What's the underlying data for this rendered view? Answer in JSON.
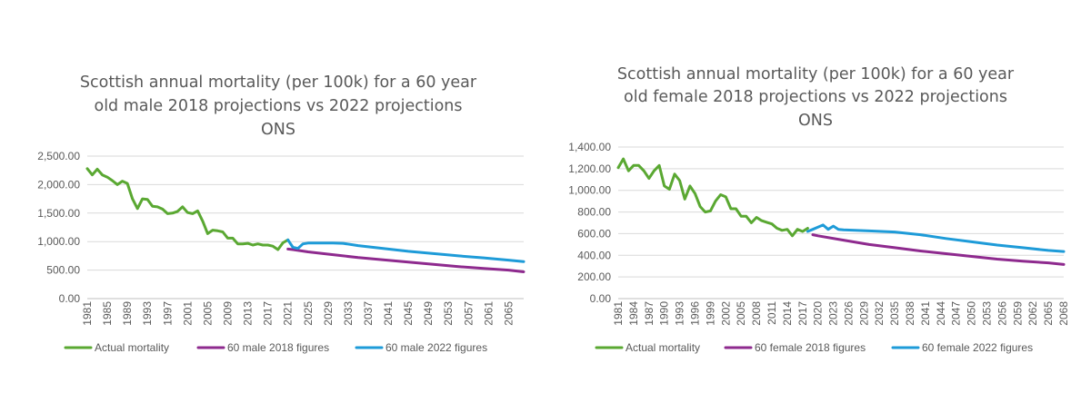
{
  "chart_data": [
    {
      "type": "line",
      "title_lines": [
        "Scottish annual mortality (per 100k) for a 60 year",
        "old male 2018 projections vs 2022 projections",
        "ONS"
      ],
      "ylim": [
        0,
        2500
      ],
      "yticks": [
        0,
        500,
        1000,
        1500,
        2000,
        2500
      ],
      "ytick_labels": [
        "0.00",
        "500.00",
        "1,000.00",
        "1,500.00",
        "2,000.00",
        "2,500.00"
      ],
      "xlim": [
        1981,
        2068
      ],
      "xticks": [
        1981,
        1985,
        1989,
        1993,
        1997,
        2001,
        2005,
        2009,
        2013,
        2017,
        2021,
        2025,
        2029,
        2033,
        2037,
        2041,
        2045,
        2049,
        2053,
        2057,
        2061,
        2065
      ],
      "series": [
        {
          "name": "Actual mortality",
          "color": "#5aa832",
          "x": [
            1981,
            1982,
            1983,
            1984,
            1985,
            1986,
            1987,
            1988,
            1989,
            1990,
            1991,
            1992,
            1993,
            1994,
            1995,
            1996,
            1997,
            1998,
            1999,
            2000,
            2001,
            2002,
            2003,
            2004,
            2005,
            2006,
            2007,
            2008,
            2009,
            2010,
            2011,
            2012,
            2013,
            2014,
            2015,
            2016,
            2017,
            2018,
            2019,
            2020,
            2021
          ],
          "y": [
            2280,
            2170,
            2270,
            2170,
            2130,
            2070,
            2000,
            2060,
            2020,
            1750,
            1580,
            1750,
            1740,
            1620,
            1610,
            1570,
            1490,
            1500,
            1530,
            1610,
            1510,
            1490,
            1540,
            1360,
            1140,
            1200,
            1190,
            1170,
            1060,
            1060,
            960,
            960,
            970,
            940,
            960,
            940,
            940,
            920,
            860,
            980,
            1030
          ]
        },
        {
          "name": "60 male 2018 figures",
          "color": "#8e2a8e",
          "x": [
            2021,
            2022,
            2025,
            2030,
            2035,
            2040,
            2045,
            2050,
            2055,
            2060,
            2065,
            2068
          ],
          "y": [
            870,
            860,
            820,
            770,
            720,
            680,
            640,
            600,
            560,
            530,
            500,
            470
          ]
        },
        {
          "name": "60 male 2022 figures",
          "color": "#1e9bd8",
          "x": [
            2021,
            2022,
            2023,
            2024,
            2025,
            2026,
            2030,
            2032,
            2035,
            2040,
            2045,
            2050,
            2055,
            2060,
            2065,
            2068
          ],
          "y": [
            1030,
            900,
            880,
            960,
            975,
            975,
            975,
            970,
            930,
            880,
            830,
            790,
            750,
            715,
            675,
            650
          ]
        }
      ]
    },
    {
      "type": "line",
      "title_lines": [
        "Scottish annual mortality (per 100k) for a 60 year",
        "old female 2018 projections vs 2022 projections",
        "ONS"
      ],
      "ylim": [
        0,
        1400
      ],
      "yticks": [
        0,
        200,
        400,
        600,
        800,
        1000,
        1200,
        1400
      ],
      "ytick_labels": [
        "0.00",
        "200.00",
        "400.00",
        "600.00",
        "800.00",
        "1,000.00",
        "1,200.00",
        "1,400.00"
      ],
      "xlim": [
        1981,
        2068
      ],
      "xticks": [
        1981,
        1984,
        1987,
        1990,
        1993,
        1996,
        1999,
        2002,
        2005,
        2008,
        2011,
        2014,
        2017,
        2020,
        2023,
        2026,
        2029,
        2032,
        2035,
        2038,
        2041,
        2044,
        2047,
        2050,
        2053,
        2056,
        2059,
        2062,
        2065,
        2068
      ],
      "series": [
        {
          "name": "Actual mortality",
          "color": "#5aa832",
          "x": [
            1981,
            1982,
            1983,
            1984,
            1985,
            1986,
            1987,
            1988,
            1989,
            1990,
            1991,
            1992,
            1993,
            1994,
            1995,
            1996,
            1997,
            1998,
            1999,
            2000,
            2001,
            2002,
            2003,
            2004,
            2005,
            2006,
            2007,
            2008,
            2009,
            2010,
            2011,
            2012,
            2013,
            2014,
            2015,
            2016,
            2017,
            2018
          ],
          "y": [
            1210,
            1290,
            1180,
            1230,
            1230,
            1180,
            1110,
            1180,
            1230,
            1040,
            1010,
            1150,
            1090,
            920,
            1040,
            970,
            850,
            800,
            810,
            900,
            960,
            940,
            830,
            830,
            760,
            760,
            700,
            750,
            720,
            705,
            690,
            650,
            630,
            640,
            580,
            640,
            620,
            650
          ]
        },
        {
          "name": "60 female 2018 figures",
          "color": "#8e2a8e",
          "x": [
            2019,
            2020,
            2025,
            2030,
            2035,
            2040,
            2045,
            2050,
            2055,
            2060,
            2065,
            2068
          ],
          "y": [
            590,
            580,
            540,
            500,
            470,
            440,
            415,
            390,
            365,
            345,
            330,
            315
          ]
        },
        {
          "name": "60 female 2022 figures",
          "color": "#1e9bd8",
          "x": [
            2018,
            2019,
            2020,
            2021,
            2022,
            2023,
            2024,
            2025,
            2030,
            2035,
            2040,
            2045,
            2050,
            2055,
            2060,
            2065,
            2068
          ],
          "y": [
            620,
            640,
            660,
            680,
            640,
            670,
            640,
            635,
            625,
            615,
            590,
            555,
            525,
            495,
            470,
            445,
            435
          ]
        }
      ]
    }
  ]
}
